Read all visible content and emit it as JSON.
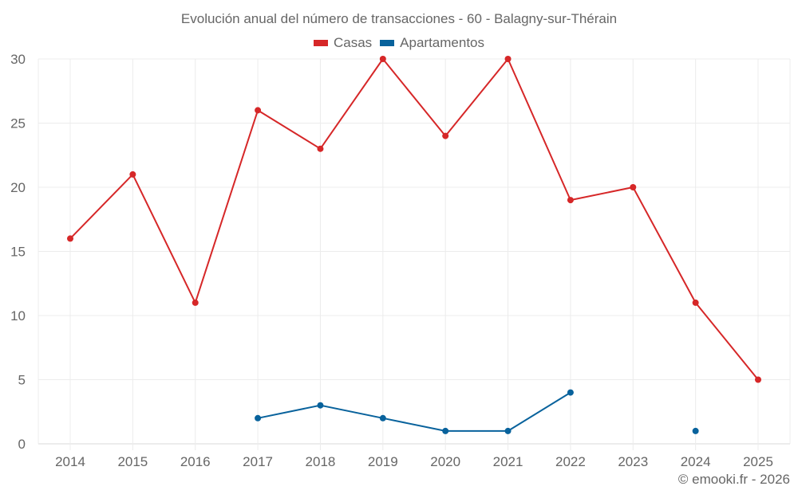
{
  "chart_data": {
    "type": "line",
    "title": "Evolución anual del número de transacciones - 60 - Balagny-sur-Thérain",
    "xlabel": "",
    "ylabel": "",
    "categories": [
      "2014",
      "2015",
      "2016",
      "2017",
      "2018",
      "2019",
      "2020",
      "2021",
      "2022",
      "2023",
      "2024",
      "2025"
    ],
    "ylim": [
      0,
      30
    ],
    "yticks": [
      0,
      5,
      10,
      15,
      20,
      25,
      30
    ],
    "grid": true,
    "legend_position": "top",
    "series": [
      {
        "name": "Casas",
        "color": "#d62728",
        "values": [
          16,
          21,
          11,
          26,
          23,
          30,
          24,
          30,
          19,
          20,
          11,
          5
        ]
      },
      {
        "name": "Apartamentos",
        "color": "#08629c",
        "values": [
          null,
          null,
          null,
          2,
          3,
          2,
          1,
          1,
          4,
          null,
          1,
          null
        ]
      }
    ]
  },
  "legend": {
    "items": [
      {
        "label": "Casas",
        "color": "#d62728"
      },
      {
        "label": "Apartamentos",
        "color": "#08629c"
      }
    ]
  },
  "credit": "© emooki.fr - 2026"
}
